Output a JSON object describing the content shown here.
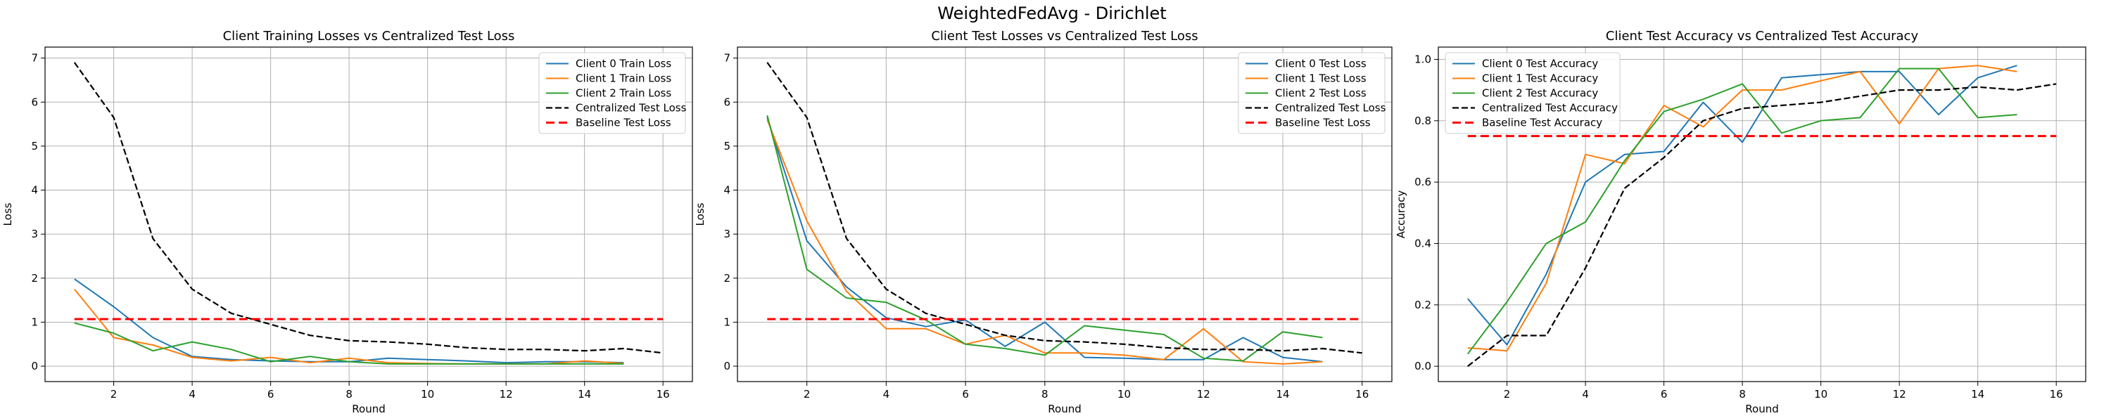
{
  "figure": {
    "suptitle": "WeightedFedAvg - Dirichlet"
  },
  "chart_data": [
    {
      "type": "line",
      "title": "Client Training Losses vs Centralized Test Loss",
      "xlabel": "Round",
      "ylabel": "Loss",
      "xlim": [
        0.25,
        16.75
      ],
      "ylim": [
        -0.35,
        7.25
      ],
      "xticks": [
        2,
        4,
        6,
        8,
        10,
        12,
        14,
        16
      ],
      "yticks": [
        0,
        1,
        2,
        3,
        4,
        5,
        6,
        7
      ],
      "grid": true,
      "legend": "top-right",
      "series": [
        {
          "name": "Client 0 Train Loss",
          "color": "#1f77b4",
          "dash": "solid",
          "x": [
            1,
            2,
            3,
            4,
            5,
            6,
            7,
            8,
            9,
            10,
            11,
            12,
            13,
            14,
            15
          ],
          "y": [
            1.98,
            1.35,
            0.65,
            0.22,
            0.15,
            0.12,
            0.1,
            0.1,
            0.18,
            0.15,
            0.12,
            0.08,
            0.1,
            0.1,
            0.08
          ]
        },
        {
          "name": "Client 1 Train Loss",
          "color": "#ff7f0e",
          "dash": "solid",
          "x": [
            1,
            2,
            3,
            4,
            5,
            6,
            7,
            8,
            9,
            10,
            11,
            12,
            13,
            14,
            15
          ],
          "y": [
            1.75,
            0.65,
            0.48,
            0.2,
            0.12,
            0.2,
            0.08,
            0.18,
            0.08,
            0.06,
            0.05,
            0.05,
            0.05,
            0.12,
            0.06
          ]
        },
        {
          "name": "Client 2 Train Loss",
          "color": "#2ca02c",
          "dash": "solid",
          "x": [
            1,
            2,
            3,
            4,
            5,
            6,
            7,
            8,
            9,
            10,
            11,
            12,
            13,
            14,
            15
          ],
          "y": [
            0.98,
            0.75,
            0.35,
            0.55,
            0.38,
            0.1,
            0.22,
            0.1,
            0.05,
            0.05,
            0.05,
            0.05,
            0.05,
            0.05,
            0.05
          ]
        },
        {
          "name": "Centralized Test Loss",
          "color": "#000000",
          "dash": "dashed",
          "x": [
            1,
            2,
            3,
            4,
            5,
            6,
            7,
            8,
            9,
            10,
            11,
            12,
            13,
            14,
            15,
            16
          ],
          "y": [
            6.9,
            5.65,
            2.9,
            1.75,
            1.2,
            0.95,
            0.7,
            0.58,
            0.55,
            0.5,
            0.42,
            0.38,
            0.38,
            0.35,
            0.4,
            0.3
          ]
        },
        {
          "name": "Baseline Test Loss",
          "color": "#ff0000",
          "dash": "thick-dashed",
          "x": [
            1,
            16
          ],
          "y": [
            1.07,
            1.07
          ]
        }
      ]
    },
    {
      "type": "line",
      "title": "Client Test Losses vs Centralized Test Loss",
      "xlabel": "Round",
      "ylabel": "Loss",
      "xlim": [
        0.25,
        16.75
      ],
      "ylim": [
        -0.35,
        7.25
      ],
      "xticks": [
        2,
        4,
        6,
        8,
        10,
        12,
        14,
        16
      ],
      "yticks": [
        0,
        1,
        2,
        3,
        4,
        5,
        6,
        7
      ],
      "grid": true,
      "legend": "top-right",
      "series": [
        {
          "name": "Client 0 Test Loss",
          "color": "#1f77b4",
          "dash": "solid",
          "x": [
            1,
            2,
            3,
            4,
            5,
            6,
            7,
            8,
            9,
            10,
            11,
            12,
            13,
            14,
            15
          ],
          "y": [
            5.65,
            2.85,
            1.8,
            1.1,
            0.9,
            1.05,
            0.45,
            1.0,
            0.2,
            0.18,
            0.15,
            0.15,
            0.65,
            0.2,
            0.1
          ]
        },
        {
          "name": "Client 1 Test Loss",
          "color": "#ff7f0e",
          "dash": "solid",
          "x": [
            1,
            2,
            3,
            4,
            5,
            6,
            7,
            8,
            9,
            10,
            11,
            12,
            13,
            14,
            15
          ],
          "y": [
            5.6,
            3.3,
            1.7,
            0.85,
            0.85,
            0.5,
            0.7,
            0.3,
            0.3,
            0.25,
            0.15,
            0.85,
            0.1,
            0.05,
            0.1
          ]
        },
        {
          "name": "Client 2 Test Loss",
          "color": "#2ca02c",
          "dash": "solid",
          "x": [
            1,
            2,
            3,
            4,
            5,
            6,
            7,
            8,
            9,
            10,
            11,
            12,
            13,
            14,
            15
          ],
          "y": [
            5.7,
            2.2,
            1.55,
            1.45,
            1.05,
            0.5,
            0.4,
            0.25,
            0.92,
            0.82,
            0.72,
            0.18,
            0.12,
            0.78,
            0.65
          ]
        },
        {
          "name": "Centralized Test Loss",
          "color": "#000000",
          "dash": "dashed",
          "x": [
            1,
            2,
            3,
            4,
            5,
            6,
            7,
            8,
            9,
            10,
            11,
            12,
            13,
            14,
            15,
            16
          ],
          "y": [
            6.9,
            5.65,
            2.9,
            1.75,
            1.2,
            0.95,
            0.7,
            0.58,
            0.55,
            0.5,
            0.42,
            0.38,
            0.38,
            0.35,
            0.4,
            0.3
          ]
        },
        {
          "name": "Baseline Test Loss",
          "color": "#ff0000",
          "dash": "thick-dashed",
          "x": [
            1,
            16
          ],
          "y": [
            1.07,
            1.07
          ]
        }
      ]
    },
    {
      "type": "line",
      "title": "Client Test Accuracy vs Centralized Test Accuracy",
      "xlabel": "Round",
      "ylabel": "Accuracy",
      "xlim": [
        0.25,
        16.75
      ],
      "ylim": [
        -0.05,
        1.04
      ],
      "xticks": [
        2,
        4,
        6,
        8,
        10,
        12,
        14,
        16
      ],
      "yticks": [
        0.0,
        0.2,
        0.4,
        0.6,
        0.8,
        1.0
      ],
      "ytick_labels": [
        "0.0",
        "0.2",
        "0.4",
        "0.6",
        "0.8",
        "1.0"
      ],
      "grid": true,
      "legend": "top-left",
      "series": [
        {
          "name": "Client 0 Test Accuracy",
          "color": "#1f77b4",
          "dash": "solid",
          "x": [
            1,
            2,
            3,
            4,
            5,
            6,
            7,
            8,
            9,
            10,
            11,
            12,
            13,
            14,
            15
          ],
          "y": [
            0.22,
            0.07,
            0.3,
            0.6,
            0.69,
            0.7,
            0.86,
            0.73,
            0.94,
            0.95,
            0.96,
            0.96,
            0.82,
            0.94,
            0.98
          ]
        },
        {
          "name": "Client 1 Test Accuracy",
          "color": "#ff7f0e",
          "dash": "solid",
          "x": [
            1,
            2,
            3,
            4,
            5,
            6,
            7,
            8,
            9,
            10,
            11,
            12,
            13,
            14,
            15
          ],
          "y": [
            0.06,
            0.05,
            0.27,
            0.69,
            0.66,
            0.85,
            0.78,
            0.9,
            0.9,
            0.93,
            0.96,
            0.79,
            0.97,
            0.98,
            0.96
          ]
        },
        {
          "name": "Client 2 Test Accuracy",
          "color": "#2ca02c",
          "dash": "solid",
          "x": [
            1,
            2,
            3,
            4,
            5,
            6,
            7,
            8,
            9,
            10,
            11,
            12,
            13,
            14,
            15
          ],
          "y": [
            0.04,
            0.21,
            0.4,
            0.47,
            0.67,
            0.83,
            0.87,
            0.92,
            0.76,
            0.8,
            0.81,
            0.97,
            0.97,
            0.81,
            0.82
          ]
        },
        {
          "name": "Centralized Test Accuracy",
          "color": "#000000",
          "dash": "dashed",
          "x": [
            1,
            2,
            3,
            4,
            5,
            6,
            7,
            8,
            9,
            10,
            11,
            12,
            13,
            14,
            15,
            16
          ],
          "y": [
            0.0,
            0.1,
            0.1,
            0.32,
            0.58,
            0.68,
            0.8,
            0.84,
            0.85,
            0.86,
            0.88,
            0.9,
            0.9,
            0.91,
            0.9,
            0.92
          ]
        },
        {
          "name": "Baseline Test Accuracy",
          "color": "#ff0000",
          "dash": "thick-dashed",
          "x": [
            1,
            16
          ],
          "y": [
            0.75,
            0.75
          ]
        }
      ]
    }
  ]
}
